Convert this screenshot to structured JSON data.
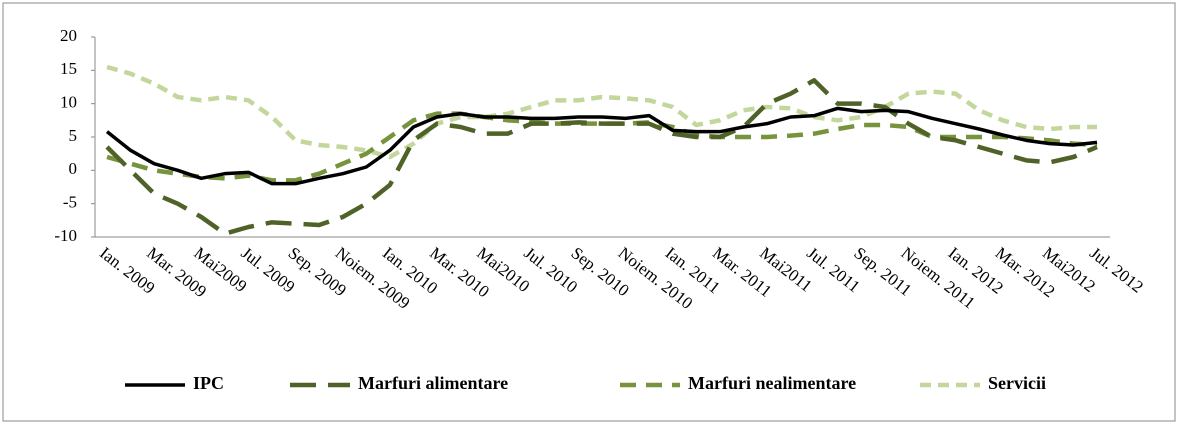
{
  "chart_data": {
    "type": "line",
    "categories": [
      "Ian. 2009",
      null,
      "Mar. 2009",
      null,
      "Mai2009",
      null,
      "Jul. 2009",
      null,
      "Sep. 2009",
      null,
      "Noiem. 2009",
      null,
      "Ian. 2010",
      null,
      "Mar. 2010",
      null,
      "Mai2010",
      null,
      "Jul. 2010",
      null,
      "Sep. 2010",
      null,
      "Noiem. 2010",
      null,
      "Ian. 2011",
      null,
      "Mar. 2011",
      null,
      "Mai2011",
      null,
      "Jul. 2011",
      null,
      "Sep. 2011",
      null,
      "Noiem. 2011",
      null,
      "Ian. 2012",
      null,
      "Mar. 2012",
      null,
      "Mai2012",
      null,
      "Jul. 2012"
    ],
    "series": [
      {
        "name": "IPC",
        "color": "#000000",
        "values": [
          5.8,
          3,
          1,
          0,
          -1.2,
          -0.5,
          -0.3,
          -2,
          -2,
          -1.2,
          -0.5,
          0.5,
          3,
          6.5,
          8,
          8.5,
          8,
          8,
          7.8,
          7.8,
          8,
          8,
          7.8,
          8.2,
          6,
          5.8,
          5.8,
          6.5,
          7,
          8,
          8.2,
          9.3,
          8.8,
          9,
          8.8,
          7.8,
          7,
          6.2,
          5.3,
          4.5,
          4,
          3.8,
          4.2
        ]
      },
      {
        "name": "Marfuri alimentare",
        "color": "#4f6228",
        "values": [
          3.5,
          0,
          -3.5,
          -5,
          -7,
          -9.5,
          -8.5,
          -7.8,
          -8,
          -8.2,
          -7,
          -5,
          -2.2,
          4.5,
          7,
          6.5,
          5.5,
          5.5,
          7,
          7,
          7.2,
          7,
          7,
          7,
          5.5,
          5,
          5,
          6.5,
          10,
          11.5,
          13.5,
          10,
          10,
          9.5,
          7,
          5,
          4.5,
          3.5,
          2.5,
          1.5,
          1.2,
          2,
          3.5
        ]
      },
      {
        "name": "Marfuri nealimentare",
        "color": "#77933c",
        "values": [
          2,
          1,
          0,
          -0.5,
          -1,
          -1.2,
          -0.8,
          -1.5,
          -1.5,
          -0.5,
          1,
          2.5,
          5,
          7.5,
          8.5,
          8.5,
          8,
          7.5,
          7.3,
          7,
          7,
          7,
          7,
          7.2,
          6.5,
          5.3,
          5,
          5,
          5,
          5.2,
          5.5,
          6.2,
          6.8,
          6.8,
          6.5,
          5,
          5,
          5,
          5,
          4.8,
          4.5,
          4,
          3.8
        ]
      },
      {
        "name": "Servicii",
        "color": "#c3d69b",
        "values": [
          15.5,
          14.5,
          13,
          11,
          10.5,
          11,
          10.5,
          8,
          4.5,
          3.8,
          3.5,
          3,
          2,
          4,
          7,
          8,
          8,
          8.5,
          9.5,
          10.5,
          10.5,
          11,
          10.8,
          10.5,
          9.5,
          6.8,
          7.5,
          9,
          9.5,
          9.3,
          8,
          7.5,
          8,
          9.5,
          11.5,
          11.8,
          11.5,
          9,
          7.5,
          6.5,
          6.2,
          6.5,
          6.5
        ]
      }
    ],
    "ylim": [
      -10,
      20
    ],
    "yticks": [
      -10,
      -5,
      0,
      5,
      10,
      15,
      20
    ],
    "legend": "bottom"
  }
}
